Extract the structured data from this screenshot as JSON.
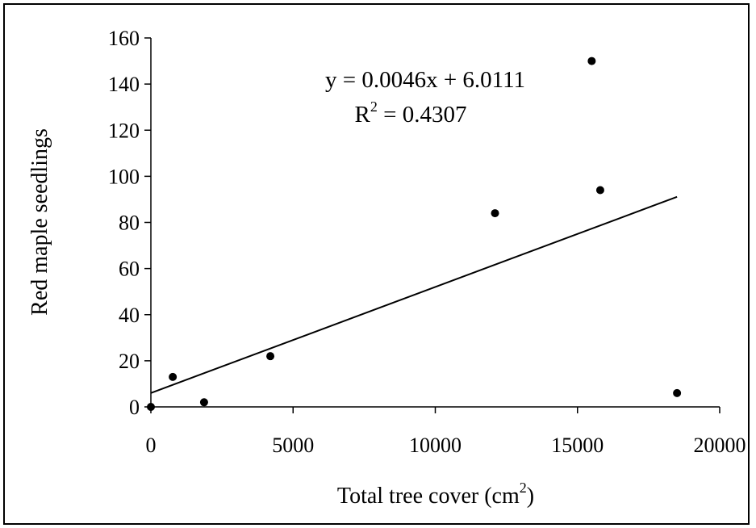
{
  "chart_data": {
    "type": "scatter",
    "xlabel": "Total tree cover (cm",
    "xlabel_sup": "2",
    "xlabel_end": ")",
    "ylabel": "Red maple seedlings",
    "xlim": [
      0,
      20000
    ],
    "ylim": [
      0,
      160
    ],
    "xticks": [
      0,
      5000,
      10000,
      15000,
      20000
    ],
    "yticks": [
      0,
      20,
      40,
      60,
      80,
      100,
      120,
      140,
      160
    ],
    "grid": false,
    "points": [
      {
        "x": 0,
        "y": 0
      },
      {
        "x": 770,
        "y": 13
      },
      {
        "x": 1870,
        "y": 2
      },
      {
        "x": 4200,
        "y": 22
      },
      {
        "x": 12100,
        "y": 84
      },
      {
        "x": 15500,
        "y": 150
      },
      {
        "x": 15800,
        "y": 94
      },
      {
        "x": 18500,
        "y": 6
      }
    ],
    "trendline": {
      "type": "linear",
      "slope": 0.0046,
      "intercept": 6.0111,
      "x_range": [
        0,
        18500
      ],
      "equation_label": "y = 0.0046x + 6.0111",
      "r2_prefix": "R",
      "r2_sup": "2",
      "r2_suffix": " = 0.4307"
    },
    "colors": {
      "marker": "#000000",
      "line": "#000000"
    }
  }
}
